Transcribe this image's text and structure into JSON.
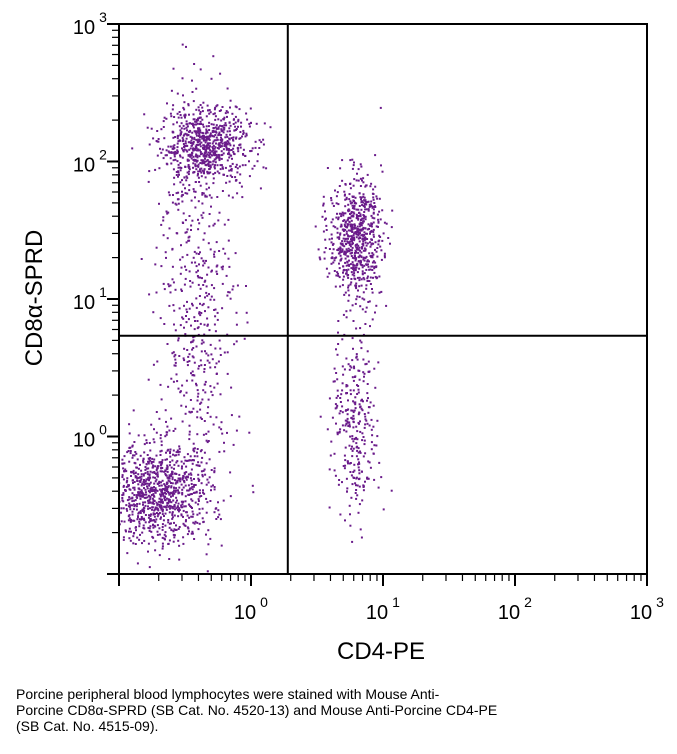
{
  "chart_data": {
    "type": "scatter",
    "scale": "log-log",
    "xlabel": "CD4-PE",
    "ylabel": "CD8α-SPRD",
    "xlim": [
      0.1,
      1000
    ],
    "ylim": [
      0.1,
      1000
    ],
    "x_ticks": [
      {
        "base": "10",
        "exp": "0",
        "value": 1
      },
      {
        "base": "10",
        "exp": "1",
        "value": 10
      },
      {
        "base": "10",
        "exp": "2",
        "value": 100
      },
      {
        "base": "10",
        "exp": "3",
        "value": 1000
      }
    ],
    "y_ticks": [
      {
        "base": "10",
        "exp": "0",
        "value": 1
      },
      {
        "base": "10",
        "exp": "1",
        "value": 10
      },
      {
        "base": "10",
        "exp": "2",
        "value": 100
      },
      {
        "base": "10",
        "exp": "3",
        "value": 1000
      }
    ],
    "quadrant_gates": {
      "x": 1.9,
      "y": 5.4
    },
    "grid": false,
    "point_color": "#6a1b8a",
    "populations": [
      {
        "center_x": 0.45,
        "center_y": 130,
        "count": 750
      },
      {
        "center_x": 0.2,
        "center_y": 0.38,
        "count": 950
      },
      {
        "center_x": 0.38,
        "center_y": 8,
        "count": 520
      },
      {
        "center_x": 6.2,
        "center_y": 28,
        "count": 700
      },
      {
        "center_x": 6.2,
        "center_y": 1.2,
        "count": 300
      }
    ]
  },
  "caption": {
    "line1": "Porcine peripheral blood lymphocytes were stained with Mouse Anti-",
    "line2": "Porcine CD8α-SPRD (SB Cat. No. 4520-13) and Mouse Anti-Porcine CD4-PE",
    "line3": "(SB Cat. No. 4515-09)."
  }
}
